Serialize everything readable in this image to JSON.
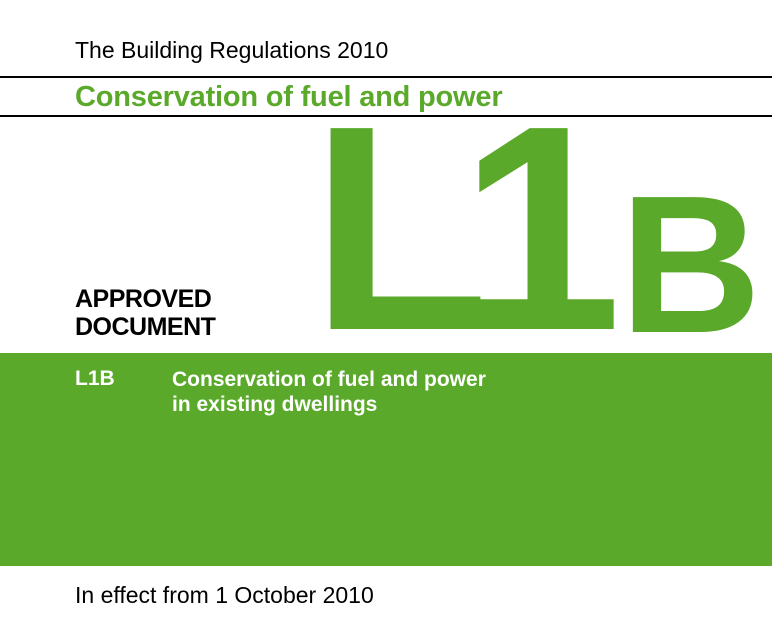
{
  "header": {
    "regulations_title": "The Building Regulations 2010",
    "document_title": "Conservation of fuel and power"
  },
  "badge": {
    "line1": "APPROVED",
    "line2": "DOCUMENT"
  },
  "code": {
    "main": "L1",
    "suffix": "B"
  },
  "band": {
    "code": "L1B",
    "title_line1": "Conservation of fuel and power",
    "title_line2": "in existing dwellings"
  },
  "footer": {
    "effective": "In effect from 1 October 2010"
  },
  "colors": {
    "brand_green": "#5aa92a",
    "text": "#000000",
    "band_text": "#ffffff"
  }
}
